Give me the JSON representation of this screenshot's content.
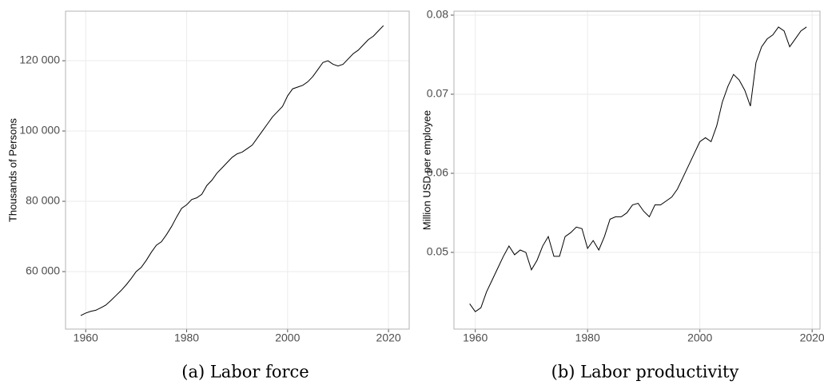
{
  "chart_data": [
    {
      "type": "line",
      "caption": "(a) Labor force",
      "y_label": "Thousands of Persons",
      "color": "#000000",
      "grid": true,
      "xlim": [
        1956,
        2024.1
      ],
      "xticks": [
        1960,
        1980,
        2000,
        2020
      ],
      "ylim": [
        43640,
        134100
      ],
      "yticks": [
        {
          "value": 60000,
          "label": "60 000"
        },
        {
          "value": 80000,
          "label": "80 000"
        },
        {
          "value": 100000,
          "label": "100 000"
        },
        {
          "value": 120000,
          "label": "120 000"
        }
      ],
      "x": [
        1959,
        1960,
        1961,
        1962,
        1963,
        1964,
        1965,
        1966,
        1967,
        1968,
        1969,
        1970,
        1971,
        1972,
        1973,
        1974,
        1975,
        1976,
        1977,
        1978,
        1979,
        1980,
        1981,
        1982,
        1983,
        1984,
        1985,
        1986,
        1987,
        1988,
        1989,
        1990,
        1991,
        1992,
        1993,
        1994,
        1995,
        1996,
        1997,
        1998,
        1999,
        2000,
        2001,
        2002,
        2003,
        2004,
        2005,
        2006,
        2007,
        2008,
        2009,
        2010,
        2011,
        2012,
        2013,
        2014,
        2015,
        2016,
        2017,
        2018,
        2019
      ],
      "values": [
        47500,
        48200,
        48700,
        49000,
        49700,
        50500,
        51800,
        53200,
        54600,
        56200,
        58000,
        60000,
        61200,
        63200,
        65500,
        67500,
        68500,
        70500,
        72800,
        75500,
        78000,
        79000,
        80500,
        81000,
        82000,
        84500,
        86000,
        88000,
        89500,
        91000,
        92500,
        93500,
        94000,
        95000,
        96000,
        98000,
        100000,
        102000,
        104000,
        105500,
        107000,
        110000,
        112000,
        112500,
        113000,
        114000,
        115500,
        117500,
        119500,
        120000,
        119000,
        118500,
        119000,
        120500,
        122000,
        123000,
        124500,
        126000,
        127000,
        128500,
        130000
      ]
    },
    {
      "type": "line",
      "caption": "(b) Labor productivity",
      "y_label": "Million USD per employee",
      "color": "#000000",
      "grid": true,
      "xlim": [
        1956.2,
        2021.4
      ],
      "xticks": [
        1960,
        1980,
        2000,
        2020
      ],
      "ylim": [
        0.0403,
        0.0805
      ],
      "yticks": [
        0.05,
        0.06,
        0.07,
        0.08
      ],
      "x": [
        1959,
        1960,
        1961,
        1962,
        1963,
        1964,
        1965,
        1966,
        1967,
        1968,
        1969,
        1970,
        1971,
        1972,
        1973,
        1974,
        1975,
        1976,
        1977,
        1978,
        1979,
        1980,
        1981,
        1982,
        1983,
        1984,
        1985,
        1986,
        1987,
        1988,
        1989,
        1990,
        1991,
        1992,
        1993,
        1994,
        1995,
        1996,
        1997,
        1998,
        1999,
        2000,
        2001,
        2002,
        2003,
        2004,
        2005,
        2006,
        2007,
        2008,
        2009,
        2010,
        2011,
        2012,
        2013,
        2014,
        2015,
        2016,
        2017,
        2018,
        2019
      ],
      "values": [
        0.0435,
        0.0425,
        0.043,
        0.045,
        0.0465,
        0.048,
        0.0495,
        0.0508,
        0.0497,
        0.0503,
        0.05,
        0.0478,
        0.049,
        0.0508,
        0.052,
        0.0495,
        0.0495,
        0.052,
        0.0525,
        0.0532,
        0.053,
        0.0505,
        0.0515,
        0.0503,
        0.052,
        0.0542,
        0.0545,
        0.0545,
        0.055,
        0.056,
        0.0562,
        0.0552,
        0.0545,
        0.056,
        0.056,
        0.0565,
        0.057,
        0.058,
        0.0595,
        0.061,
        0.0625,
        0.064,
        0.0645,
        0.064,
        0.066,
        0.069,
        0.071,
        0.0725,
        0.0718,
        0.0705,
        0.0685,
        0.074,
        0.076,
        0.077,
        0.0775,
        0.0785,
        0.078,
        0.076,
        0.077,
        0.078,
        0.0785
      ]
    }
  ]
}
